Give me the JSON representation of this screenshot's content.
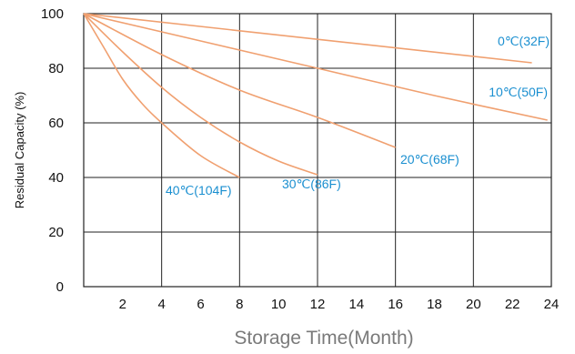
{
  "chart_data": {
    "type": "line",
    "title": "",
    "xlabel": "Storage Time(Month)",
    "ylabel": "Residual Capacity (%)",
    "xlim": [
      0,
      24
    ],
    "ylim": [
      0,
      100
    ],
    "x_ticks": [
      "2",
      "4",
      "6",
      "8",
      "10",
      "12",
      "14",
      "16",
      "18",
      "20",
      "22",
      "24"
    ],
    "y_ticks": [
      "100",
      "80",
      "60",
      "40",
      "20",
      "0"
    ],
    "grid": true,
    "line_color": "#f0a070",
    "label_color": "#1a8fd0",
    "series": [
      {
        "name": "0℃(32F)",
        "x": [
          0,
          23
        ],
        "y": [
          100,
          82
        ]
      },
      {
        "name": "10℃(50F)",
        "x": [
          0,
          6,
          12,
          18,
          23.8
        ],
        "y": [
          100,
          90,
          80,
          70,
          61
        ]
      },
      {
        "name": "20℃(68F)",
        "x": [
          0,
          4,
          8,
          12,
          16
        ],
        "y": [
          100,
          85,
          72,
          62,
          51
        ]
      },
      {
        "name": "30℃(86F)",
        "x": [
          0,
          2,
          4,
          6,
          8,
          10,
          12
        ],
        "y": [
          100,
          86,
          73,
          62,
          53,
          46,
          41
        ]
      },
      {
        "name": "40℃(104F)",
        "x": [
          0,
          1,
          2,
          3,
          4,
          6,
          8
        ],
        "y": [
          100,
          88,
          76,
          67,
          60,
          48,
          40
        ]
      }
    ]
  }
}
